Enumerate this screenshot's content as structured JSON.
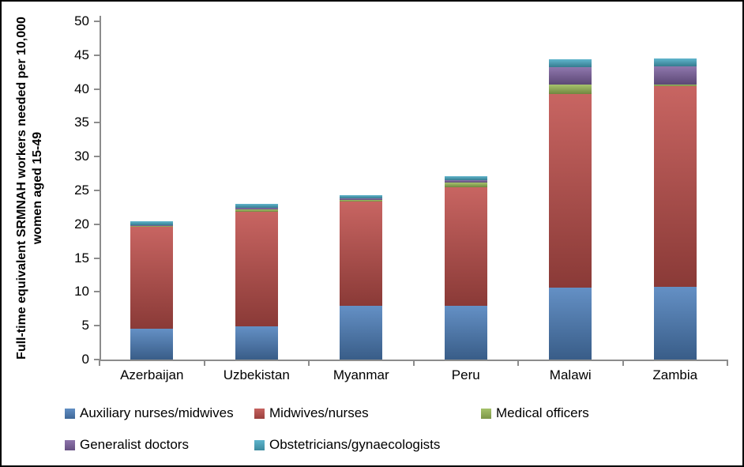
{
  "chart_data": {
    "type": "bar",
    "stacked": true,
    "title": "",
    "ylabel": "Full-time equivalent SRMNAH workers needed per 10,000 women aged 15-49",
    "xlabel": "",
    "ylim": [
      0,
      50
    ],
    "yticks": [
      0,
      5,
      10,
      15,
      20,
      25,
      30,
      35,
      40,
      45,
      50
    ],
    "grid": false,
    "legend_position": "bottom",
    "categories": [
      "Azerbaijan",
      "Uzbekistan",
      "Myanmar",
      "Peru",
      "Malawi",
      "Zambia"
    ],
    "series": [
      {
        "name": "Auxiliary nurses/midwives",
        "color": "#4F81BD",
        "values": [
          4.5,
          4.9,
          8.0,
          7.9,
          10.6,
          10.8
        ]
      },
      {
        "name": "Midwives/nurses",
        "color": "#C0504D",
        "values": [
          15.2,
          17.0,
          15.4,
          17.6,
          28.7,
          29.6
        ]
      },
      {
        "name": "Medical officers",
        "color": "#9BBB59",
        "values": [
          0.1,
          0.3,
          0.2,
          0.7,
          1.4,
          0.3
        ]
      },
      {
        "name": "Generalist doctors",
        "color": "#8064A2",
        "values": [
          0.1,
          0.2,
          0.2,
          0.3,
          2.5,
          2.6
        ]
      },
      {
        "name": "Obstetricians/gynaecologists",
        "color": "#4BACC6",
        "values": [
          0.5,
          0.6,
          0.5,
          0.6,
          1.2,
          1.2
        ]
      }
    ],
    "totals": [
      20.4,
      23.0,
      24.3,
      27.1,
      44.4,
      44.5
    ]
  }
}
